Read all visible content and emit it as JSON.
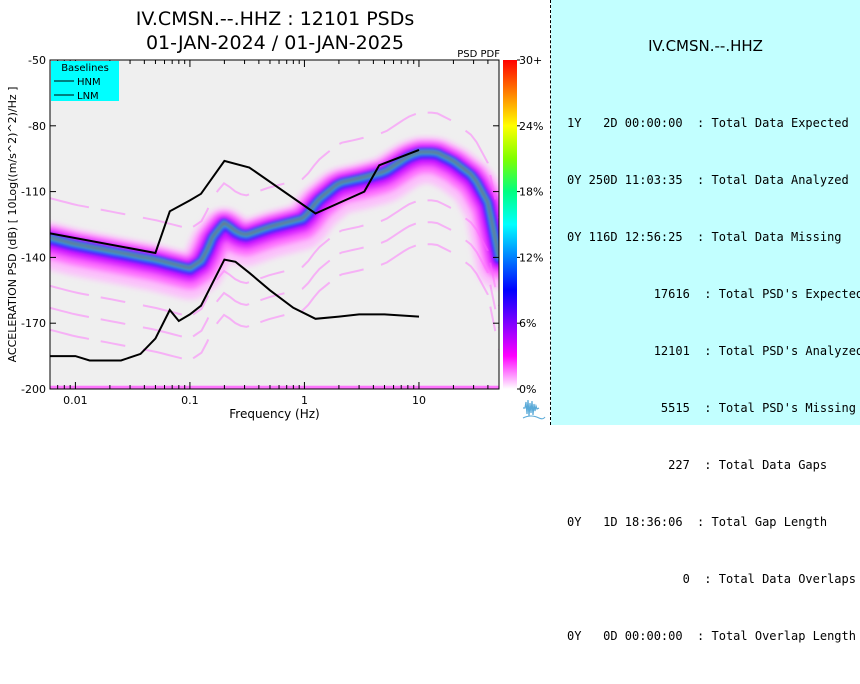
{
  "header": {
    "title": "IV.CMSN.--.HHZ : 12101 PSDs",
    "subtitle": "01-JAN-2024 / 01-JAN-2025"
  },
  "chart_data": {
    "type": "heatmap",
    "title": "IV.CMSN.--.HHZ : 12101 PSDs",
    "subtitle": "01-JAN-2024 / 01-JAN-2025",
    "xlabel": "Frequency (Hz)",
    "ylabel": "ACCELERATION PSD (dB) [ 10Log((m/s^2)^2)/Hz ]",
    "x_scale": "log",
    "xlim": [
      0.006,
      50
    ],
    "ylim": [
      -200,
      -50
    ],
    "x_ticks": [
      0.01,
      0.1,
      1,
      10
    ],
    "x_tick_labels": [
      "0.01",
      "0.1",
      "1",
      "10"
    ],
    "y_ticks": [
      -200,
      -170,
      -140,
      -110,
      -80,
      -50
    ],
    "y_tick_labels": [
      "-200",
      "-170",
      "-140",
      "-110",
      "-80",
      "-50"
    ],
    "legend": {
      "title": "Baselines",
      "position": "top-left",
      "entries": [
        "HNM",
        "LNM"
      ]
    },
    "colorbar": {
      "label": "PSD PDF",
      "ticks": [
        "30+",
        "24%",
        "18%",
        "12%",
        "6%",
        "0%"
      ],
      "colors": [
        "#ff0000",
        "#ff8000",
        "#ffff00",
        "#80ff00",
        "#00ff80",
        "#00ffff",
        "#0080ff",
        "#0000ff",
        "#8000ff",
        "#ff00ff",
        "#ffffff"
      ]
    },
    "series": [
      {
        "name": "HNM",
        "x": [
          0.006,
          0.05,
          0.0667,
          0.1,
          0.125,
          0.2,
          0.33,
          1.25,
          3.33,
          4.5,
          10
        ],
        "y": [
          -129,
          -138,
          -119,
          -114,
          -111,
          -96,
          -99,
          -120,
          -110,
          -98,
          -91
        ]
      },
      {
        "name": "LNM",
        "x": [
          0.006,
          0.01,
          0.0133,
          0.025,
          0.037,
          0.05,
          0.0667,
          0.08,
          0.1,
          0.125,
          0.2,
          0.25,
          0.33,
          0.5,
          0.8,
          1.25,
          2.0,
          3.0,
          5.0,
          10.0
        ],
        "y": [
          -185,
          -185,
          -187,
          -187,
          -184,
          -177,
          -164,
          -169,
          -166,
          -162,
          -141,
          -142,
          -147,
          -155,
          -163,
          -168,
          -167,
          -166,
          -166,
          -167
        ]
      }
    ],
    "mode_curve": {
      "x": [
        0.006,
        0.01,
        0.02,
        0.05,
        0.1,
        0.13,
        0.16,
        0.2,
        0.25,
        0.3,
        0.5,
        1.0,
        1.3,
        2.0,
        3.0,
        5.0,
        8.0,
        10.0,
        14.0,
        20.0,
        30.0,
        40.0,
        50.0
      ],
      "y": [
        -131,
        -134,
        -137,
        -141,
        -145,
        -141,
        -130,
        -124,
        -128,
        -130,
        -126,
        -122,
        -114,
        -106,
        -104,
        -101,
        -94,
        -92,
        -92,
        -96,
        -103,
        -115,
        -140
      ]
    }
  },
  "stats_panel": {
    "station": "IV.CMSN.--.HHZ",
    "rows": [
      "1Y   2D 00:00:00  : Total Data Expected",
      "0Y 250D 11:03:35  : Total Data Analyzed",
      "0Y 116D 12:56:25  : Total Data Missing",
      "            17616  : Total PSD's Expected",
      "            12101  : Total PSD's Analyzed",
      "             5515  : Total PSD's Missing",
      "              227  : Total Data Gaps",
      "0Y   1D 18:36:06  : Total Gap Length",
      "                0  : Total Data Overlaps",
      "0Y   0D 00:00:00  : Total Overlap Length"
    ]
  }
}
